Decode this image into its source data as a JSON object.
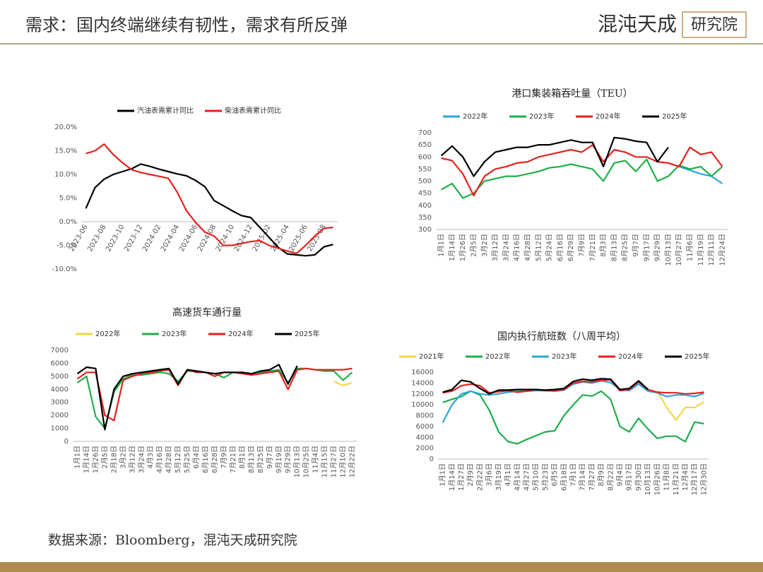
{
  "header": {
    "title": "需求：国内终端继续有韧性，需求有所反弹",
    "logo_name": "混沌天成",
    "logo_sub": "研究院"
  },
  "source": "数据来源：Bloomberg，混沌天成研究院",
  "chart_data": [
    {
      "type": "line",
      "grid": false,
      "categories": [
        "2023-06",
        null,
        "2023-08",
        null,
        "2023-10",
        null,
        "2023-12",
        null,
        "2024-02",
        null,
        "2024-04",
        null,
        "2024-06",
        null,
        "2024-08",
        null,
        "2024-10",
        null,
        "2024-12",
        null,
        "2025-02",
        null,
        "2025-04",
        null,
        "2025-06",
        null,
        "2025-08",
        null
      ],
      "series": [
        {
          "name": "汽油表需累计同比",
          "color": "#000000",
          "values": [
            2.8,
            7.2,
            9,
            10,
            10.6,
            11.2,
            12.2,
            11.7,
            11.1,
            10.6,
            10.1,
            9.7,
            8.7,
            7.4,
            4.5,
            3.4,
            2.3,
            1.3,
            0.9,
            -1.2,
            -3.3,
            -5.4,
            -6.8,
            -7,
            -7.2,
            -7,
            -5.3,
            -4.8
          ]
        },
        {
          "name": "柴油表需累计同比",
          "color": "#e3221f",
          "values": [
            14.4,
            15,
            16.4,
            14.2,
            12.5,
            11,
            10.4,
            10,
            9.6,
            9.2,
            6.2,
            2.3,
            -0.2,
            -2.2,
            -3,
            -5,
            -5,
            -4.6,
            -4.2,
            -4,
            -5,
            -5.6,
            -6.2,
            -6.7,
            -5,
            -3,
            -1.4,
            -1.2
          ]
        }
      ],
      "ylim": [
        -10,
        20
      ],
      "yticks": [
        {
          "value": -10,
          "label": "-10.0%"
        },
        {
          "value": -5,
          "label": "-5.0%"
        },
        {
          "value": 0,
          "label": "0.0%"
        },
        {
          "value": 5,
          "label": "5.0%"
        },
        {
          "value": 10,
          "label": "10.0%"
        },
        {
          "value": 15,
          "label": "15.0%"
        },
        {
          "value": 20,
          "label": "20.0%"
        }
      ]
    },
    {
      "type": "line",
      "title": "港口集装箱吞吐量（TEU）",
      "grid": false,
      "categories": [
        "1月1日",
        "1月14日",
        "1月26日",
        "2月5日",
        "3月2日",
        "3月12日",
        "3月24日",
        "4月16日",
        "4月28日",
        "5月12日",
        "5月24日",
        "6月16日",
        "6月29日",
        "7月9日",
        "7月21日",
        "8月3日",
        "8月13日",
        "8月25日",
        "9月7日",
        "9月17日",
        "9月29日",
        "10月13日",
        "10月27日",
        "11月6日",
        "11月19日",
        "12月11日",
        "12月24日"
      ],
      "series": [
        {
          "name": "2022年",
          "color": "#2aa5dc",
          "values": [
            null,
            null,
            null,
            null,
            null,
            null,
            null,
            null,
            null,
            null,
            null,
            null,
            null,
            null,
            null,
            null,
            null,
            null,
            null,
            null,
            null,
            null,
            560,
            545,
            530,
            520,
            490
          ]
        },
        {
          "name": "2023年",
          "color": "#1fae4b",
          "values": [
            465,
            490,
            430,
            450,
            500,
            510,
            520,
            520,
            530,
            540,
            555,
            560,
            570,
            560,
            550,
            500,
            575,
            585,
            540,
            590,
            500,
            520,
            565,
            550,
            560,
            520,
            560
          ]
        },
        {
          "name": "2024年",
          "color": "#e3221f",
          "values": [
            595,
            585,
            530,
            440,
            520,
            550,
            560,
            575,
            580,
            600,
            610,
            620,
            630,
            620,
            650,
            580,
            630,
            620,
            600,
            600,
            580,
            575,
            560,
            640,
            610,
            620,
            560
          ]
        },
        {
          "name": "2025年",
          "color": "#000000",
          "values": [
            605,
            645,
            600,
            520,
            580,
            620,
            630,
            640,
            640,
            650,
            650,
            660,
            670,
            660,
            660,
            560,
            680,
            675,
            665,
            660,
            580,
            640,
            null,
            null,
            null,
            null,
            null
          ]
        }
      ],
      "ylim": [
        300,
        700
      ],
      "yticks": [
        300,
        350,
        400,
        450,
        500,
        550,
        600,
        650,
        700
      ]
    },
    {
      "type": "line",
      "title": "高速货车通行量",
      "grid": false,
      "categories": [
        "1月1日",
        "1月14日",
        "1月26日",
        "2月5日",
        "2月18日",
        "3月2日",
        "3月12日",
        "3月24日",
        "4月3日",
        "4月16日",
        "4月28日",
        "5月12日",
        "5月25日",
        "6月4日",
        "6月16日",
        "6月28日",
        "7月9日",
        "7月21日",
        "8月1日",
        "8月13日",
        "8月25日",
        "9月7日",
        "9月19日",
        "9月29日",
        "10月13日",
        "10月25日",
        "11月4日",
        "11月15日",
        "11月27日",
        "12月10日",
        "12月22日"
      ],
      "series": [
        {
          "name": "2022年",
          "color": "#f5d547",
          "values": [
            null,
            null,
            null,
            null,
            null,
            null,
            null,
            null,
            null,
            null,
            null,
            null,
            null,
            null,
            null,
            null,
            null,
            null,
            null,
            null,
            null,
            null,
            null,
            null,
            null,
            null,
            null,
            null,
            4600,
            4300,
            4500
          ]
        },
        {
          "name": "2023年",
          "color": "#1fae4b",
          "values": [
            4500,
            5000,
            1900,
            1000,
            3800,
            4800,
            5100,
            5100,
            5200,
            5300,
            5200,
            4600,
            5400,
            5400,
            5300,
            5200,
            4900,
            5300,
            5300,
            5200,
            5300,
            5400,
            5500,
            4500,
            5600,
            5600,
            5500,
            5400,
            5400,
            4700,
            5300
          ]
        },
        {
          "name": "2024年",
          "color": "#e3221f",
          "values": [
            4800,
            5300,
            5300,
            2000,
            1600,
            4700,
            5000,
            5200,
            5300,
            5400,
            5500,
            4300,
            5500,
            5300,
            5300,
            5000,
            5300,
            5300,
            5200,
            5100,
            5200,
            5300,
            5400,
            4000,
            5500,
            5600,
            5500,
            5500,
            5500,
            5500,
            5600
          ]
        },
        {
          "name": "2025年",
          "color": "#000000",
          "values": [
            5200,
            5700,
            5600,
            900,
            4000,
            5000,
            5200,
            5300,
            5400,
            5500,
            5600,
            4400,
            5500,
            5400,
            5300,
            5200,
            5300,
            5300,
            5300,
            5200,
            5400,
            5500,
            5900,
            4400,
            5800,
            null,
            null,
            null,
            null,
            null,
            null
          ]
        }
      ],
      "ylim": [
        0,
        7000
      ],
      "yticks": [
        0,
        1000,
        2000,
        3000,
        4000,
        5000,
        6000,
        7000
      ]
    },
    {
      "type": "line",
      "title": "国内执行航班数（八周平均）",
      "grid": false,
      "categories": [
        "1月1日",
        "1月14日",
        "1月27日",
        "2月9日",
        "2月22日",
        "3月6日",
        "3月19日",
        "4月1日",
        "4月14日",
        "4月27日",
        "5月10日",
        "5月23日",
        "6月5日",
        "6月18日",
        "7月1日",
        "7月14日",
        "7月27日",
        "8月9日",
        "8月22日",
        "9月4日",
        "9月17日",
        "9月30日",
        "10月13日",
        "10月26日",
        "11月8日",
        "11月21日",
        "12月4日",
        "12月17日",
        "12月30日"
      ],
      "series": [
        {
          "name": "2021年",
          "color": "#f5d547",
          "values": [
            null,
            null,
            null,
            null,
            null,
            null,
            null,
            null,
            null,
            null,
            null,
            null,
            null,
            null,
            null,
            null,
            null,
            null,
            null,
            null,
            null,
            null,
            null,
            12500,
            9500,
            7200,
            9500,
            9500,
            10500
          ]
        },
        {
          "name": "2022年",
          "color": "#1fae4b",
          "values": [
            10400,
            11000,
            11500,
            12500,
            11800,
            9000,
            5000,
            3200,
            2800,
            3600,
            4300,
            5000,
            5200,
            8000,
            10000,
            11800,
            11600,
            12500,
            11000,
            6000,
            5000,
            7500,
            5500,
            3800,
            4200,
            4200,
            3200,
            6800,
            6500
          ]
        },
        {
          "name": "2023年",
          "color": "#2aa5dc",
          "values": [
            6700,
            10000,
            12000,
            12500,
            12000,
            11800,
            12000,
            12300,
            12500,
            12500,
            12600,
            12600,
            12500,
            12700,
            13800,
            14200,
            14000,
            14400,
            14100,
            12800,
            12600,
            13800,
            12500,
            12200,
            11500,
            11800,
            11800,
            11500,
            12100
          ]
        },
        {
          "name": "2024年",
          "color": "#e3221f",
          "values": [
            12200,
            12500,
            13500,
            13800,
            13500,
            12200,
            12400,
            12600,
            12300,
            12500,
            12800,
            12600,
            12600,
            12800,
            14000,
            14300,
            14200,
            14500,
            14600,
            12600,
            12800,
            14200,
            12800,
            12300,
            12200,
            12200,
            12000,
            12100,
            12300
          ]
        },
        {
          "name": "2025年",
          "color": "#000000",
          "values": [
            12300,
            12800,
            14500,
            14200,
            13000,
            12000,
            12700,
            12700,
            12800,
            12800,
            12800,
            12700,
            12800,
            13000,
            14300,
            14700,
            14500,
            14800,
            14700,
            12800,
            13000,
            14400,
            12800,
            null,
            null,
            null,
            null,
            null,
            null
          ]
        }
      ],
      "ylim": [
        0,
        16000
      ],
      "yticks": [
        0,
        2000,
        4000,
        6000,
        8000,
        10000,
        12000,
        14000,
        16000
      ]
    }
  ]
}
